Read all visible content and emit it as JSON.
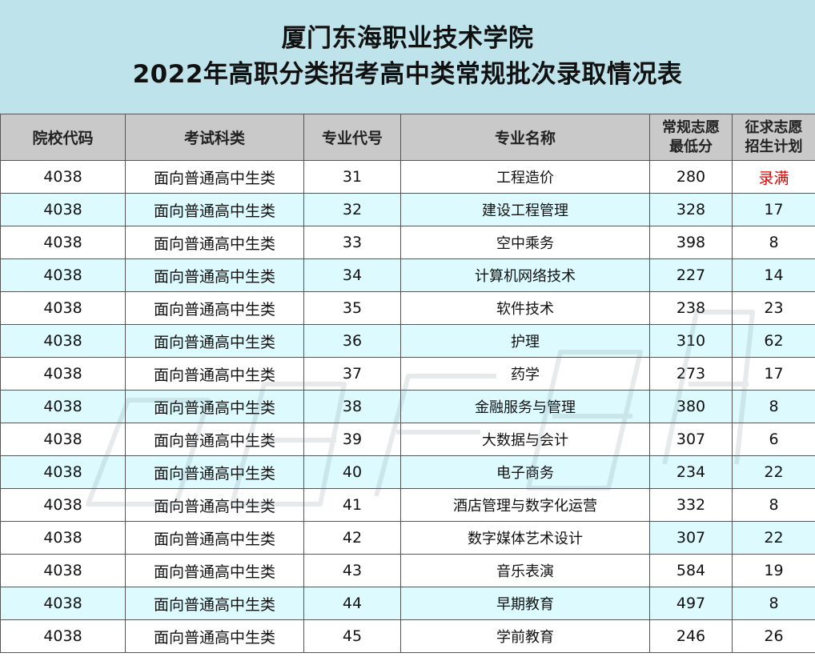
{
  "title": {
    "line1": "厦门东海职业技术学院",
    "line2": "2022年高职分类招考高中类常规批次录取情况表"
  },
  "table": {
    "headers": {
      "school_code": "院校代码",
      "exam_category": "考试科类",
      "major_code": "专业代号",
      "major_name": "专业名称",
      "min_score_line1": "常规志愿",
      "min_score_line2": "最低分",
      "plan_line1": "征求志愿",
      "plan_line2": "招生计划"
    },
    "rows": [
      {
        "school_code": "4038",
        "category": "面向普通高中生类",
        "major_code": "31",
        "major_name": "工程造价",
        "min_score": "280",
        "plan": "录满"
      },
      {
        "school_code": "4038",
        "category": "面向普通高中生类",
        "major_code": "32",
        "major_name": "建设工程管理",
        "min_score": "328",
        "plan": "17"
      },
      {
        "school_code": "4038",
        "category": "面向普通高中生类",
        "major_code": "33",
        "major_name": "空中乘务",
        "min_score": "398",
        "plan": "8"
      },
      {
        "school_code": "4038",
        "category": "面向普通高中生类",
        "major_code": "34",
        "major_name": "计算机网络技术",
        "min_score": "227",
        "plan": "14"
      },
      {
        "school_code": "4038",
        "category": "面向普通高中生类",
        "major_code": "35",
        "major_name": "软件技术",
        "min_score": "238",
        "plan": "23"
      },
      {
        "school_code": "4038",
        "category": "面向普通高中生类",
        "major_code": "36",
        "major_name": "护理",
        "min_score": "310",
        "plan": "62"
      },
      {
        "school_code": "4038",
        "category": "面向普通高中生类",
        "major_code": "37",
        "major_name": "药学",
        "min_score": "273",
        "plan": "17"
      },
      {
        "school_code": "4038",
        "category": "面向普通高中生类",
        "major_code": "38",
        "major_name": "金融服务与管理",
        "min_score": "380",
        "plan": "8"
      },
      {
        "school_code": "4038",
        "category": "面向普通高中生类",
        "major_code": "39",
        "major_name": "大数据与会计",
        "min_score": "307",
        "plan": "6"
      },
      {
        "school_code": "4038",
        "category": "面向普通高中生类",
        "major_code": "40",
        "major_name": "电子商务",
        "min_score": "234",
        "plan": "22"
      },
      {
        "school_code": "4038",
        "category": "面向普通高中生类",
        "major_code": "41",
        "major_name": "酒店管理与数字化运营",
        "min_score": "332",
        "plan": "8"
      },
      {
        "school_code": "4038",
        "category": "面向普通高中生类",
        "major_code": "42",
        "major_name": "数字媒体艺术设计",
        "min_score": "307",
        "plan": "22"
      },
      {
        "school_code": "4038",
        "category": "面向普通高中生类",
        "major_code": "43",
        "major_name": "音乐表演",
        "min_score": "584",
        "plan": "19"
      },
      {
        "school_code": "4038",
        "category": "面向普通高中生类",
        "major_code": "44",
        "major_name": "早期教育",
        "min_score": "497",
        "plan": "8"
      },
      {
        "school_code": "4038",
        "category": "面向普通高中生类",
        "major_code": "45",
        "major_name": "学前教育",
        "min_score": "246",
        "plan": "26"
      }
    ]
  },
  "colors": {
    "title_bg": "#bfe3ea",
    "header_bg": "#c9c9c9",
    "row_shade": "#ddfbff",
    "full_text": "#e00000"
  }
}
